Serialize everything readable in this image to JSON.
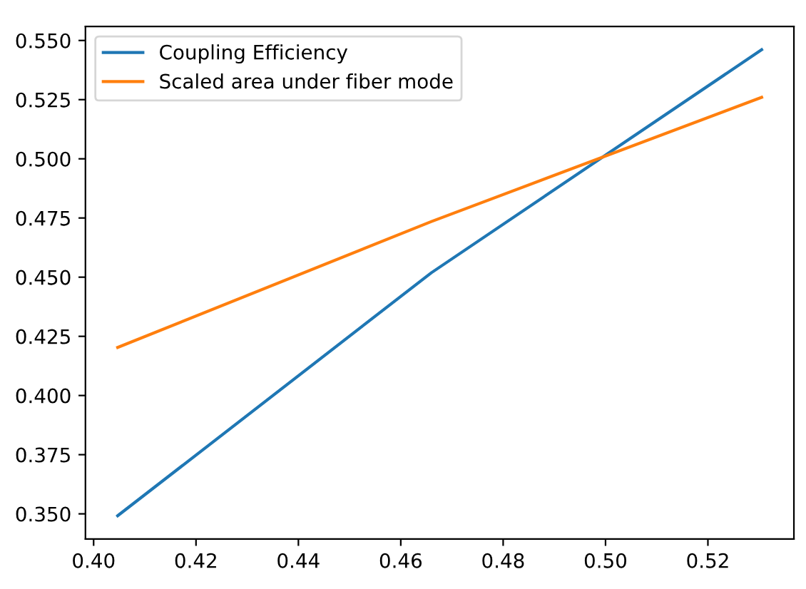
{
  "chart_data": {
    "type": "line",
    "x": [
      0.4047,
      0.466,
      0.5305
    ],
    "series": [
      {
        "name": "Coupling Efficiency",
        "color": "#1f77b4",
        "values": [
          0.3492,
          0.4519,
          0.5461
        ]
      },
      {
        "name": "Scaled area under fiber mode",
        "color": "#ff7f0e",
        "values": [
          0.4203,
          0.4735,
          0.526
        ]
      }
    ],
    "xlim": [
      0.3984,
      0.5368
    ],
    "xticks": [
      {
        "value": 0.4,
        "label": "0.40"
      },
      {
        "value": 0.42,
        "label": "0.42"
      },
      {
        "value": 0.44,
        "label": "0.44"
      },
      {
        "value": 0.46,
        "label": "0.46"
      },
      {
        "value": 0.48,
        "label": "0.48"
      },
      {
        "value": 0.5,
        "label": "0.50"
      },
      {
        "value": 0.52,
        "label": "0.52"
      }
    ],
    "ylim": [
      0.3394,
      0.5559
    ],
    "yticks": [
      {
        "value": 0.35,
        "label": "0.350"
      },
      {
        "value": 0.375,
        "label": "0.375"
      },
      {
        "value": 0.4,
        "label": "0.400"
      },
      {
        "value": 0.425,
        "label": "0.425"
      },
      {
        "value": 0.45,
        "label": "0.450"
      },
      {
        "value": 0.475,
        "label": "0.475"
      },
      {
        "value": 0.5,
        "label": "0.500"
      },
      {
        "value": 0.525,
        "label": "0.525"
      },
      {
        "value": 0.55,
        "label": "0.550"
      }
    ],
    "grid": false,
    "legend": "top left",
    "marker": "none",
    "line_style": "solid"
  }
}
